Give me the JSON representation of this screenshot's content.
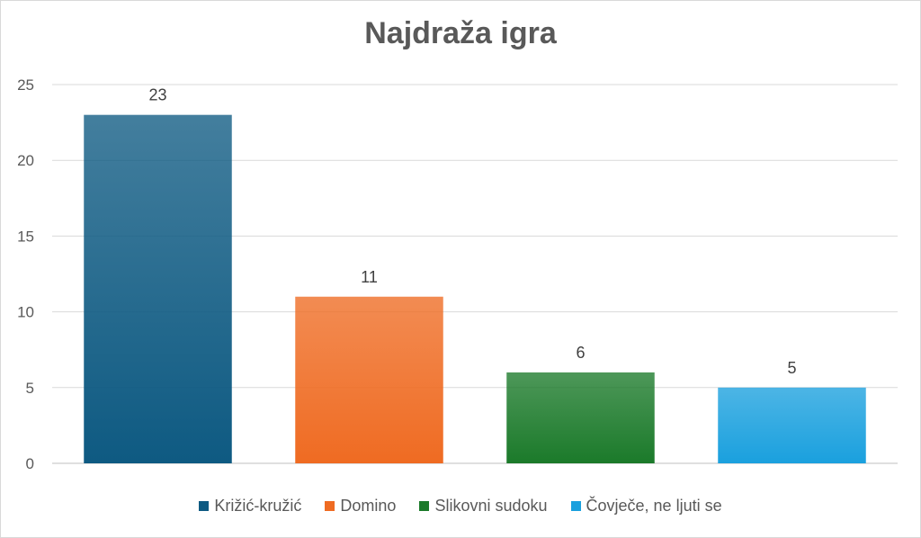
{
  "chart_data": {
    "type": "bar",
    "title": "Najdraža igra",
    "categories": [
      "Križić-kružić",
      "Domino",
      "Slikovni sudoku",
      "Čovječe, ne ljuti se"
    ],
    "values": [
      23,
      11,
      6,
      5
    ],
    "data_labels": [
      "23",
      "11",
      "6",
      "5"
    ],
    "colors": [
      "#0e5a82",
      "#ef6b22",
      "#1b7a2a",
      "#1aa0de"
    ],
    "ylim": [
      0,
      25
    ],
    "yticks": [
      0,
      5,
      10,
      15,
      20,
      25
    ],
    "xlabel": "",
    "ylabel": "",
    "grid": true,
    "legend": "bottom"
  }
}
